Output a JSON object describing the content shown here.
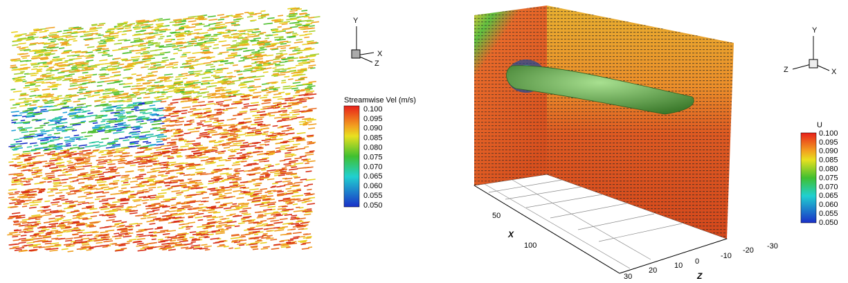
{
  "left_panel": {
    "triad": {
      "y": "Y",
      "x": "X",
      "z": "Z"
    },
    "colorbar": {
      "title": "Streamwise Vel (m/s)",
      "labels": [
        "0.100",
        "0.095",
        "0.090",
        "0.085",
        "0.080",
        "0.075",
        "0.070",
        "0.065",
        "0.060",
        "0.055",
        "0.050"
      ]
    }
  },
  "right_panel": {
    "triad": {
      "y": "Y",
      "z": "Z",
      "x": "X"
    },
    "colorbar": {
      "title": "U",
      "labels": [
        "0.100",
        "0.095",
        "0.090",
        "0.085",
        "0.080",
        "0.075",
        "0.070",
        "0.065",
        "0.060",
        "0.055",
        "0.050"
      ]
    },
    "x_axis": {
      "title": "X",
      "ticks": [
        "50",
        "100"
      ]
    },
    "z_axis": {
      "title": "Z",
      "ticks": [
        "30",
        "20",
        "10",
        "0",
        "-10",
        "-20",
        "-30"
      ]
    }
  }
}
